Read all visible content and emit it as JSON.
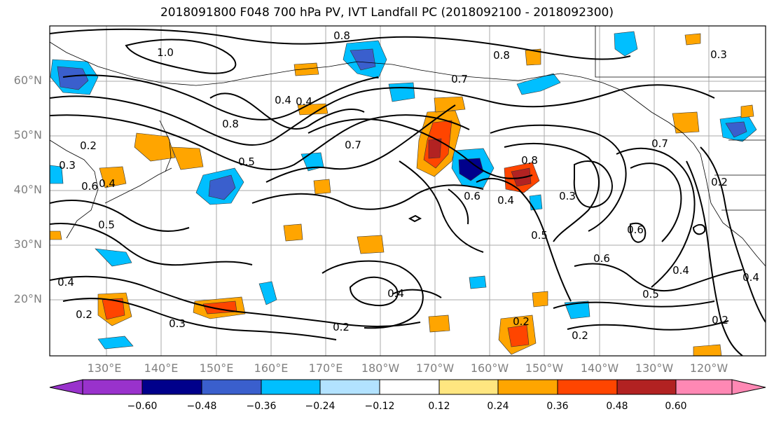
{
  "title": "2018091800 F048 700 hPa PV, IVT Landfall PC (2018092100 - 2018092300)",
  "lat_labels": [
    "60°N",
    "50°N",
    "40°N",
    "30°N",
    "20°N"
  ],
  "lon_labels": [
    "130°E",
    "140°E",
    "150°E",
    "160°E",
    "170°E",
    "180°W",
    "170°W",
    "160°W",
    "150°W",
    "140°W",
    "130°W",
    "120°W"
  ],
  "contour_labels": [
    "0.8",
    "1.0",
    "0.8",
    "0.8",
    "0.4",
    "0.4",
    "0.7",
    "0.5",
    "0.7",
    "0.4",
    "0.6",
    "0.8",
    "0.4",
    "0.3",
    "0.5",
    "0.7",
    "0.6",
    "0.2",
    "0.3",
    "0.4",
    "0.6",
    "0.2",
    "0.5",
    "0.6",
    "0.4",
    "0.4",
    "0.5",
    "0.2",
    "0.2",
    "0.4",
    "0.3",
    "0.2",
    "0.3",
    "0.2",
    "0.2"
  ],
  "colorbar": {
    "ticks": [
      "−0.60",
      "−0.48",
      "−0.36",
      "−0.24",
      "−0.12",
      "0.12",
      "0.24",
      "0.36",
      "0.48",
      "0.60"
    ],
    "colors": [
      "#9932CC",
      "#00008B",
      "#3A5FCD",
      "#00BFFF",
      "#B2E2FF",
      "#FFFFFF",
      "#FFE680",
      "#FFA500",
      "#FF4500",
      "#B22222",
      "#FF88B4"
    ]
  }
}
